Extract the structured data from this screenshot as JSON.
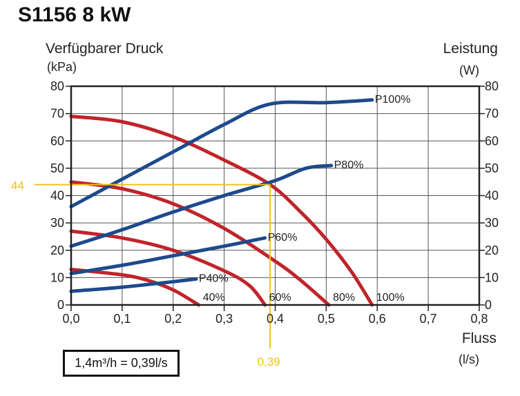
{
  "chart_data": {
    "type": "line",
    "title": "S1156 8 kW",
    "xlabel": "Fluss",
    "xunit": "(l/s)",
    "ylabel_left": "Verfügbarer Druck",
    "yunit_left": "(kPa)",
    "ylabel_right": "Leistung",
    "yunit_right": "(W)",
    "xlim": [
      0,
      0.8
    ],
    "ylim": [
      0,
      80
    ],
    "grid": true,
    "x_ticks": [
      "0,0",
      "0,1",
      "0,2",
      "0,3",
      "0,4",
      "0,5",
      "0,6",
      "0,7",
      "0,8"
    ],
    "y_ticks": [
      "0",
      "10",
      "20",
      "30",
      "40",
      "50",
      "60",
      "70",
      "80"
    ],
    "pressure_series": [
      {
        "name": "100%",
        "color": "#c0242b",
        "points": [
          [
            0,
            69
          ],
          [
            0.1,
            67
          ],
          [
            0.2,
            61.5
          ],
          [
            0.3,
            53
          ],
          [
            0.39,
            44
          ],
          [
            0.45,
            34
          ],
          [
            0.5,
            24
          ],
          [
            0.55,
            12
          ],
          [
            0.59,
            0
          ]
        ]
      },
      {
        "name": "80%",
        "color": "#c0242b",
        "points": [
          [
            0,
            45
          ],
          [
            0.1,
            42.5
          ],
          [
            0.2,
            37
          ],
          [
            0.3,
            28
          ],
          [
            0.4,
            16
          ],
          [
            0.45,
            9
          ],
          [
            0.505,
            0
          ]
        ]
      },
      {
        "name": "60%",
        "color": "#c0242b",
        "points": [
          [
            0,
            27
          ],
          [
            0.1,
            24.5
          ],
          [
            0.2,
            20
          ],
          [
            0.3,
            12.5
          ],
          [
            0.35,
            7
          ],
          [
            0.38,
            0
          ]
        ]
      },
      {
        "name": "40%",
        "color": "#c0242b",
        "points": [
          [
            0,
            13
          ],
          [
            0.1,
            11
          ],
          [
            0.15,
            9
          ],
          [
            0.2,
            5.5
          ],
          [
            0.25,
            0
          ]
        ]
      }
    ],
    "power_series": [
      {
        "name": "P100%",
        "color": "#1d4a8c",
        "points": [
          [
            0,
            36
          ],
          [
            0.1,
            46
          ],
          [
            0.2,
            56
          ],
          [
            0.3,
            66
          ],
          [
            0.39,
            73.5
          ],
          [
            0.5,
            74
          ],
          [
            0.59,
            75
          ]
        ]
      },
      {
        "name": "P80%",
        "color": "#1d4a8c",
        "points": [
          [
            0,
            21.5
          ],
          [
            0.1,
            27.5
          ],
          [
            0.2,
            34
          ],
          [
            0.3,
            40
          ],
          [
            0.4,
            45.5
          ],
          [
            0.46,
            50
          ],
          [
            0.51,
            51
          ]
        ]
      },
      {
        "name": "P60%",
        "color": "#1d4a8c",
        "points": [
          [
            0,
            11.5
          ],
          [
            0.1,
            14.5
          ],
          [
            0.2,
            18
          ],
          [
            0.3,
            21.5
          ],
          [
            0.38,
            24.5
          ]
        ]
      },
      {
        "name": "P40%",
        "color": "#1d4a8c",
        "points": [
          [
            0,
            5
          ],
          [
            0.1,
            6.5
          ],
          [
            0.2,
            8.5
          ],
          [
            0.245,
            9.5
          ]
        ]
      }
    ],
    "operating_point": {
      "x": 0.39,
      "y": 44,
      "x_label": "0,39",
      "y_label": "44",
      "color": "#f2c21b"
    },
    "conversion_note": "1,4m³/h = 0,39l/s"
  }
}
